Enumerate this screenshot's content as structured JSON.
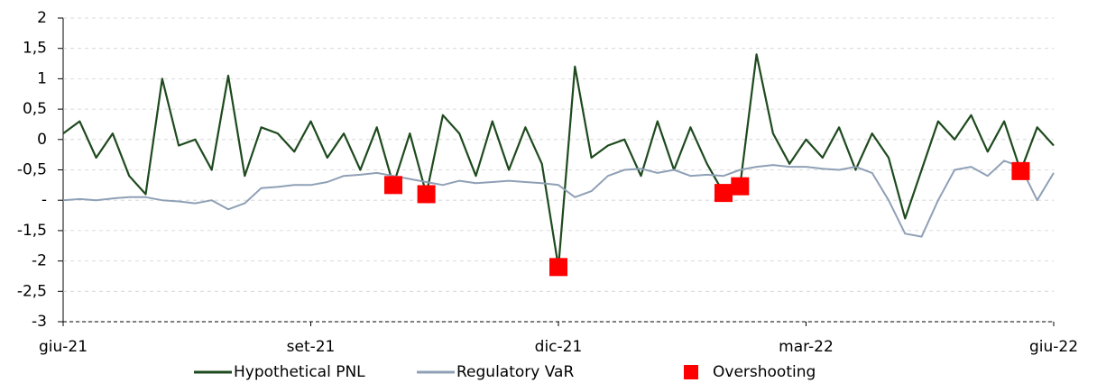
{
  "chart_data": {
    "type": "line",
    "categories": [
      "giu-21",
      null,
      null,
      null,
      null,
      null,
      null,
      null,
      null,
      null,
      null,
      null,
      null,
      null,
      null,
      "set-21",
      null,
      null,
      null,
      null,
      null,
      null,
      null,
      null,
      null,
      null,
      null,
      null,
      null,
      null,
      "dic-21",
      null,
      null,
      null,
      null,
      null,
      null,
      null,
      null,
      null,
      null,
      null,
      null,
      null,
      null,
      "mar-22",
      null,
      null,
      null,
      null,
      null,
      null,
      null,
      null,
      null,
      null,
      null,
      null,
      null,
      null,
      "giu-22"
    ],
    "series": [
      {
        "name": "Hypothetical PNL",
        "color": "#1e4a1e",
        "style": "line",
        "values": [
          0.1,
          0.3,
          -0.3,
          0.1,
          -0.6,
          -0.9,
          1.0,
          -0.1,
          0.0,
          -0.5,
          1.05,
          -0.6,
          0.2,
          0.1,
          -0.2,
          0.3,
          -0.3,
          0.1,
          -0.5,
          0.2,
          -0.75,
          0.1,
          -0.9,
          0.4,
          0.1,
          -0.6,
          0.3,
          -0.5,
          0.2,
          -0.4,
          -2.1,
          1.2,
          -0.3,
          -0.1,
          0.0,
          -0.6,
          0.3,
          -0.5,
          0.2,
          -0.4,
          -0.88,
          -0.77,
          1.4,
          0.1,
          -0.4,
          0.0,
          -0.3,
          0.2,
          -0.5,
          0.1,
          -0.3,
          -1.3,
          -0.5,
          0.3,
          0.0,
          0.4,
          -0.2,
          0.3,
          -0.52,
          0.2,
          -0.1
        ]
      },
      {
        "name": "Regulatory VaR",
        "color": "#8fa0b6",
        "style": "line",
        "values": [
          -1.0,
          -0.98,
          -1.0,
          -0.97,
          -0.95,
          -0.95,
          -1.0,
          -1.02,
          -1.05,
          -1.0,
          -1.15,
          -1.05,
          -0.8,
          -0.78,
          -0.75,
          -0.75,
          -0.7,
          -0.6,
          -0.58,
          -0.55,
          -0.6,
          -0.65,
          -0.7,
          -0.75,
          -0.68,
          -0.72,
          -0.7,
          -0.68,
          -0.7,
          -0.72,
          -0.75,
          -0.95,
          -0.85,
          -0.6,
          -0.5,
          -0.48,
          -0.55,
          -0.5,
          -0.6,
          -0.58,
          -0.6,
          -0.5,
          -0.45,
          -0.42,
          -0.45,
          -0.45,
          -0.48,
          -0.5,
          -0.45,
          -0.55,
          -1.0,
          -1.55,
          -1.6,
          -1.0,
          -0.5,
          -0.45,
          -0.6,
          -0.35,
          -0.45,
          -1.0,
          -0.55
        ]
      },
      {
        "name": "Overshooting",
        "color": "#ff0000",
        "style": "marker",
        "values": [
          null,
          null,
          null,
          null,
          null,
          null,
          null,
          null,
          null,
          null,
          null,
          null,
          null,
          null,
          null,
          null,
          null,
          null,
          null,
          null,
          -0.75,
          null,
          -0.9,
          null,
          null,
          null,
          null,
          null,
          null,
          null,
          -2.1,
          null,
          null,
          null,
          null,
          null,
          null,
          null,
          null,
          null,
          -0.88,
          -0.77,
          null,
          null,
          null,
          null,
          null,
          null,
          null,
          null,
          null,
          null,
          null,
          null,
          null,
          null,
          null,
          null,
          -0.52,
          null,
          null
        ]
      }
    ],
    "ylim": [
      -3,
      2
    ],
    "yticks": [
      -3,
      {
        "value": -2.5,
        "label": "-2,5"
      },
      -2,
      {
        "value": -1.5,
        "label": "-1,5"
      },
      {
        "value": -1,
        "label": "-"
      },
      {
        "value": -0.5,
        "label": "-0,5"
      },
      0,
      {
        "value": 0.5,
        "label": "0,5"
      },
      1,
      {
        "value": 1.5,
        "label": "1,5"
      },
      2
    ],
    "legend": "bottom"
  }
}
